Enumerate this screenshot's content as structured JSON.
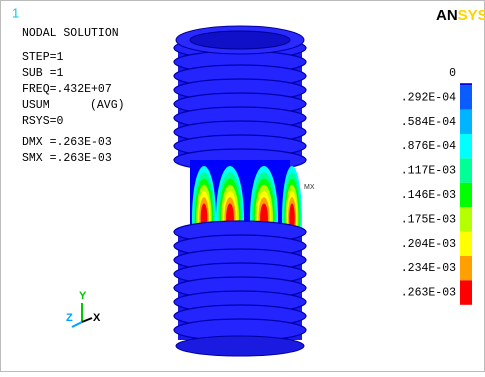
{
  "window_number": "1",
  "logo": {
    "part1": "AN",
    "part2": "SYS"
  },
  "info": [
    "NODAL SOLUTION",
    "STEP=1",
    "SUB =1",
    "FREQ=.432E+07",
    "USUM",
    "RSYS=0",
    "DMX =.263E-03",
    "SMX =.263E-03"
  ],
  "info_tag": "(AVG)",
  "marker": "MX",
  "triad": {
    "y": "Y",
    "z": "Z",
    "x": "X"
  },
  "legend": {
    "labels": [
      "0",
      ".292E-04",
      ".584E-04",
      ".876E-04",
      ".117E-03",
      ".146E-03",
      ".175E-03",
      ".204E-03",
      ".234E-03",
      ".263E-03"
    ],
    "colors": [
      "#0000ff",
      "#0a5cff",
      "#00b4ff",
      "#00ffff",
      "#00ff96",
      "#00ff00",
      "#b4ff00",
      "#ffff00",
      "#ffa000",
      "#ff0000"
    ]
  }
}
